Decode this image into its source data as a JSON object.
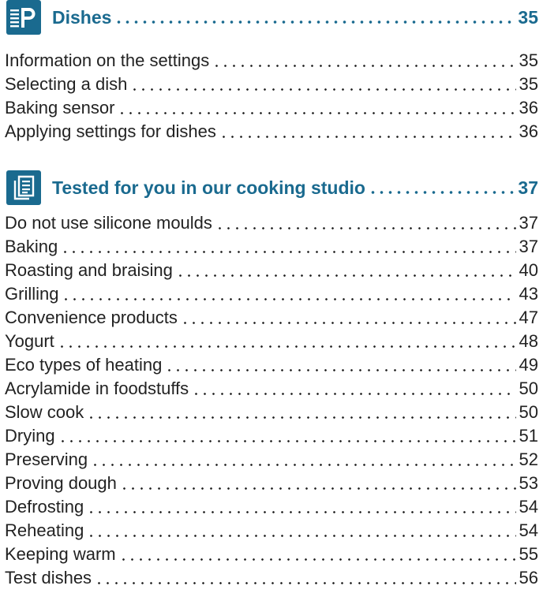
{
  "sections": [
    {
      "icon": "programs-p-icon",
      "title": "Dishes",
      "page": "35",
      "items": [
        {
          "label": "Information on the settings",
          "page": "35"
        },
        {
          "label": "Selecting a dish",
          "page": "35"
        },
        {
          "label": "Baking sensor",
          "page": "36"
        },
        {
          "label": "Applying settings for dishes",
          "page": "36"
        }
      ]
    },
    {
      "icon": "document-icon",
      "title": "Tested for you in our cooking studio",
      "page": "37",
      "items": [
        {
          "label": "Do not use silicone moulds",
          "page": "37"
        },
        {
          "label": "Baking",
          "page": "37"
        },
        {
          "label": "Roasting and braising",
          "page": "40"
        },
        {
          "label": "Grilling",
          "page": "43"
        },
        {
          "label": "Convenience products",
          "page": "47"
        },
        {
          "label": "Yogurt",
          "page": "48"
        },
        {
          "label": "Eco types of heating",
          "page": "49"
        },
        {
          "label": "Acrylamide in foodstuffs",
          "page": "50"
        },
        {
          "label": "Slow cook",
          "page": "50"
        },
        {
          "label": "Drying",
          "page": "51"
        },
        {
          "label": "Preserving",
          "page": "52"
        },
        {
          "label": "Proving dough",
          "page": "53"
        },
        {
          "label": "Defrosting",
          "page": "54"
        },
        {
          "label": "Reheating",
          "page": "54"
        },
        {
          "label": "Keeping warm",
          "page": "55"
        },
        {
          "label": "Test dishes",
          "page": "56"
        }
      ]
    }
  ],
  "colors": {
    "accent": "#1a6a8f",
    "text": "#222222"
  }
}
